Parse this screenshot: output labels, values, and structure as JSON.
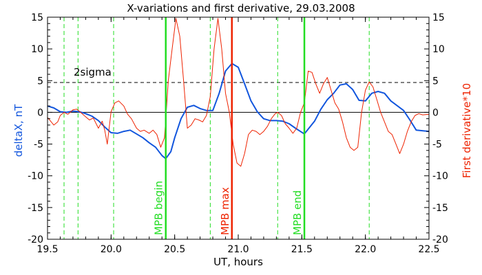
{
  "chart_data": {
    "type": "line",
    "title": "X-variations and first derivative, 29.03.2008",
    "xlabel": "UT, hours",
    "ylabel_left": "deltaX, nT",
    "ylabel_right": "First derivative*10",
    "xlim": [
      19.5,
      22.5
    ],
    "ylim": [
      -20,
      15
    ],
    "xticks": [
      "19.5",
      "20.0",
      "20.5",
      "21.0",
      "21.5",
      "22.0",
      "22.5"
    ],
    "yticks_left": [
      "-20",
      "-15",
      "-10",
      "-5",
      "0",
      "5",
      "10",
      "15"
    ],
    "yticks_right": [
      "-20",
      "-15",
      "-10",
      "-5",
      "0",
      "5",
      "10",
      "15"
    ],
    "threshold": {
      "label": "2sigma",
      "y": 4.7
    },
    "green_dashed_x": [
      19.63,
      19.74,
      20.02,
      20.78,
      21.31,
      22.03
    ],
    "markers": [
      {
        "label": "MPB begin",
        "x": 20.43,
        "color": "#22dd22"
      },
      {
        "label": "MPB max",
        "x": 20.95,
        "color": "#ee2200"
      },
      {
        "label": "MPB end",
        "x": 21.52,
        "color": "#22dd22"
      }
    ],
    "series": [
      {
        "color": "#1155dd",
        "axis": "left",
        "points": [
          [
            19.5,
            1.0
          ],
          [
            19.55,
            0.7
          ],
          [
            19.6,
            0.1
          ],
          [
            19.65,
            0
          ],
          [
            19.7,
            0.2
          ],
          [
            19.75,
            0.1
          ],
          [
            19.8,
            -0.2
          ],
          [
            19.85,
            -0.6
          ],
          [
            19.9,
            -1.3
          ],
          [
            19.95,
            -2.3
          ],
          [
            20.0,
            -3.2
          ],
          [
            20.05,
            -3.3
          ],
          [
            20.1,
            -3.0
          ],
          [
            20.15,
            -2.8
          ],
          [
            20.2,
            -3.4
          ],
          [
            20.25,
            -4.0
          ],
          [
            20.3,
            -4.8
          ],
          [
            20.35,
            -5.5
          ],
          [
            20.4,
            -6.8
          ],
          [
            20.43,
            -7.3
          ],
          [
            20.47,
            -6.2
          ],
          [
            20.5,
            -4.0
          ],
          [
            20.55,
            -1.0
          ],
          [
            20.6,
            0.8
          ],
          [
            20.65,
            1.1
          ],
          [
            20.7,
            0.6
          ],
          [
            20.75,
            0.3
          ],
          [
            20.8,
            0.3
          ],
          [
            20.85,
            3.0
          ],
          [
            20.9,
            6.5
          ],
          [
            20.95,
            7.7
          ],
          [
            21.0,
            7.1
          ],
          [
            21.05,
            4.5
          ],
          [
            21.1,
            1.8
          ],
          [
            21.15,
            0.1
          ],
          [
            21.2,
            -1.0
          ],
          [
            21.25,
            -1.3
          ],
          [
            21.3,
            -1.3
          ],
          [
            21.35,
            -1.4
          ],
          [
            21.4,
            -1.8
          ],
          [
            21.45,
            -2.5
          ],
          [
            21.52,
            -3.4
          ],
          [
            21.6,
            -1.4
          ],
          [
            21.65,
            0.5
          ],
          [
            21.7,
            2.0
          ],
          [
            21.75,
            3.0
          ],
          [
            21.8,
            4.3
          ],
          [
            21.85,
            4.5
          ],
          [
            21.9,
            3.6
          ],
          [
            21.95,
            1.9
          ],
          [
            22.0,
            1.8
          ],
          [
            22.05,
            3.0
          ],
          [
            22.1,
            3.3
          ],
          [
            22.15,
            3.0
          ],
          [
            22.2,
            1.8
          ],
          [
            22.3,
            0.3
          ],
          [
            22.35,
            -1.2
          ],
          [
            22.4,
            -2.8
          ],
          [
            22.5,
            -3.0
          ]
        ]
      },
      {
        "color": "#ee2200",
        "axis": "right",
        "points": [
          [
            19.5,
            -0.8
          ],
          [
            19.55,
            -2.0
          ],
          [
            19.58,
            -1.5
          ],
          [
            19.6,
            -0.5
          ],
          [
            19.63,
            0.0
          ],
          [
            19.66,
            -0.3
          ],
          [
            19.7,
            0.4
          ],
          [
            19.73,
            0.5
          ],
          [
            19.76,
            0.0
          ],
          [
            19.8,
            -0.7
          ],
          [
            19.83,
            -1.2
          ],
          [
            19.86,
            -0.9
          ],
          [
            19.9,
            -2.5
          ],
          [
            19.93,
            -1.4
          ],
          [
            19.95,
            -2.8
          ],
          [
            19.97,
            -5.0
          ],
          [
            20.0,
            0.1
          ],
          [
            20.03,
            1.5
          ],
          [
            20.06,
            1.8
          ],
          [
            20.1,
            1.0
          ],
          [
            20.13,
            -0.3
          ],
          [
            20.16,
            -1.0
          ],
          [
            20.2,
            -2.5
          ],
          [
            20.23,
            -3.0
          ],
          [
            20.26,
            -2.8
          ],
          [
            20.3,
            -3.3
          ],
          [
            20.33,
            -2.8
          ],
          [
            20.36,
            -3.5
          ],
          [
            20.39,
            -5.5
          ],
          [
            20.42,
            -4.0
          ],
          [
            20.45,
            5.0
          ],
          [
            20.48,
            10.0
          ],
          [
            20.51,
            14.8
          ],
          [
            20.54,
            12.0
          ],
          [
            20.57,
            5.0
          ],
          [
            20.6,
            -2.5
          ],
          [
            20.63,
            -2.0
          ],
          [
            20.66,
            -1.0
          ],
          [
            20.69,
            -1.2
          ],
          [
            20.72,
            -1.5
          ],
          [
            20.75,
            -0.5
          ],
          [
            20.78,
            2.5
          ],
          [
            20.81,
            10.0
          ],
          [
            20.84,
            14.8
          ],
          [
            20.87,
            10.0
          ],
          [
            20.9,
            3.0
          ],
          [
            20.93,
            0.0
          ],
          [
            20.96,
            -5.0
          ],
          [
            20.99,
            -8.0
          ],
          [
            21.02,
            -8.5
          ],
          [
            21.05,
            -6.5
          ],
          [
            21.08,
            -3.5
          ],
          [
            21.11,
            -2.8
          ],
          [
            21.14,
            -3.0
          ],
          [
            21.17,
            -3.5
          ],
          [
            21.2,
            -3.0
          ],
          [
            21.23,
            -2.2
          ],
          [
            21.26,
            -1.0
          ],
          [
            21.29,
            -0.2
          ],
          [
            21.31,
            0.0
          ],
          [
            21.34,
            -0.5
          ],
          [
            21.37,
            -1.8
          ],
          [
            21.4,
            -2.5
          ],
          [
            21.43,
            -3.3
          ],
          [
            21.46,
            -2.5
          ],
          [
            21.49,
            0.0
          ],
          [
            21.52,
            1.5
          ],
          [
            21.55,
            6.5
          ],
          [
            21.58,
            6.3
          ],
          [
            21.61,
            4.5
          ],
          [
            21.64,
            3.0
          ],
          [
            21.67,
            4.5
          ],
          [
            21.7,
            5.5
          ],
          [
            21.73,
            3.5
          ],
          [
            21.76,
            1.5
          ],
          [
            21.79,
            0.5
          ],
          [
            21.82,
            -1.5
          ],
          [
            21.85,
            -4.0
          ],
          [
            21.88,
            -5.5
          ],
          [
            21.91,
            -6.0
          ],
          [
            21.94,
            -5.5
          ],
          [
            21.97,
            0.0
          ],
          [
            22.0,
            3.5
          ],
          [
            22.03,
            4.8
          ],
          [
            22.06,
            4.0
          ],
          [
            22.09,
            2.0
          ],
          [
            22.12,
            0.0
          ],
          [
            22.15,
            -1.5
          ],
          [
            22.18,
            -3.0
          ],
          [
            22.21,
            -3.5
          ],
          [
            22.24,
            -5.0
          ],
          [
            22.27,
            -6.5
          ],
          [
            22.3,
            -5.0
          ],
          [
            22.33,
            -3.0
          ],
          [
            22.36,
            -1.5
          ],
          [
            22.39,
            -0.5
          ],
          [
            22.42,
            -0.2
          ],
          [
            22.45,
            -0.4
          ],
          [
            22.5,
            -0.3
          ]
        ]
      }
    ]
  }
}
